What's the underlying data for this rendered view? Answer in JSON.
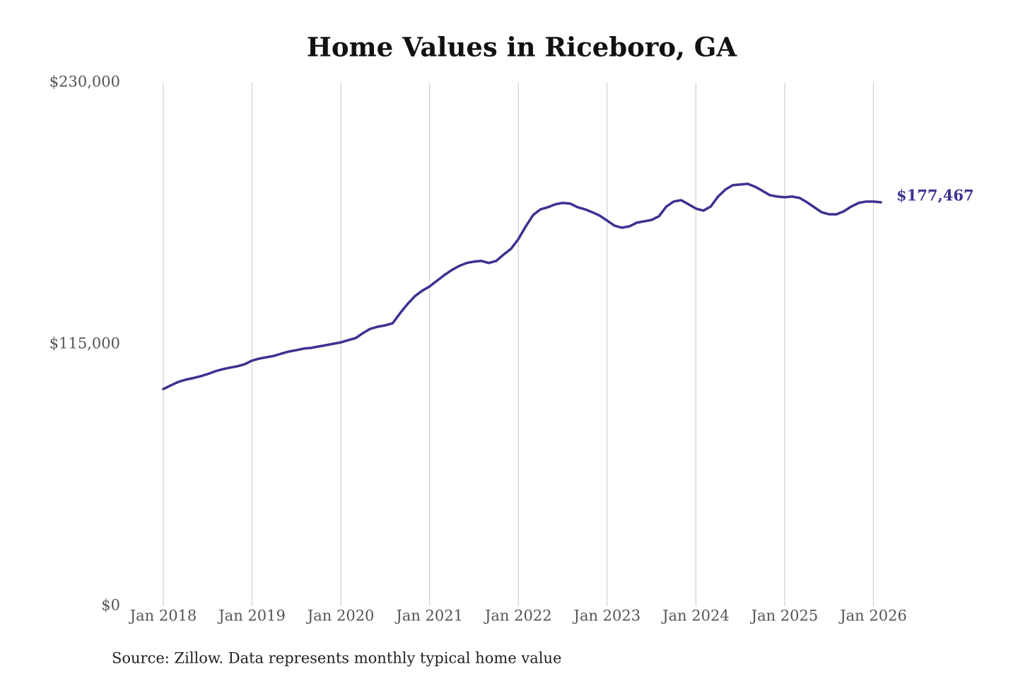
{
  "chart_data": {
    "type": "line",
    "title": "Home Values in Riceboro, GA",
    "source": "Source: Zillow. Data represents monthly typical home value",
    "x": [
      "2018-01",
      "2018-02",
      "2018-03",
      "2018-04",
      "2018-05",
      "2018-06",
      "2018-07",
      "2018-08",
      "2018-09",
      "2018-10",
      "2018-11",
      "2018-12",
      "2019-01",
      "2019-02",
      "2019-03",
      "2019-04",
      "2019-05",
      "2019-06",
      "2019-07",
      "2019-08",
      "2019-09",
      "2019-10",
      "2019-11",
      "2019-12",
      "2020-01",
      "2020-02",
      "2020-03",
      "2020-04",
      "2020-05",
      "2020-06",
      "2020-07",
      "2020-08",
      "2020-09",
      "2020-10",
      "2020-11",
      "2020-12",
      "2021-01",
      "2021-02",
      "2021-03",
      "2021-04",
      "2021-05",
      "2021-06",
      "2021-07",
      "2021-08",
      "2021-09",
      "2021-10",
      "2021-11",
      "2021-12",
      "2022-01",
      "2022-02",
      "2022-03",
      "2022-04",
      "2022-05",
      "2022-06",
      "2022-07",
      "2022-08",
      "2022-09",
      "2022-10",
      "2022-11",
      "2022-12",
      "2023-01",
      "2023-02",
      "2023-03",
      "2023-04",
      "2023-05",
      "2023-06",
      "2023-07",
      "2023-08",
      "2023-09",
      "2023-10",
      "2023-11",
      "2023-12",
      "2024-01",
      "2024-02",
      "2024-03",
      "2024-04",
      "2024-05",
      "2024-06",
      "2024-07",
      "2024-08",
      "2024-09",
      "2024-10",
      "2024-11",
      "2024-12",
      "2025-01",
      "2025-02",
      "2025-03",
      "2025-04",
      "2025-05",
      "2025-06",
      "2025-07",
      "2025-08",
      "2025-09",
      "2025-10",
      "2025-11",
      "2025-12",
      "2026-01",
      "2026-02"
    ],
    "series": [
      {
        "name": "Riceboro, GA",
        "color": "#3b3291",
        "values": [
          95400,
          97000,
          98500,
          99500,
          100200,
          101000,
          102000,
          103200,
          104100,
          104800,
          105400,
          106300,
          107900,
          108800,
          109400,
          110000,
          111000,
          111900,
          112500,
          113200,
          113500,
          114100,
          114700,
          115300,
          115900,
          116900,
          117800,
          120000,
          121900,
          122800,
          123400,
          124300,
          128700,
          132700,
          136200,
          138600,
          140500,
          143000,
          145500,
          147700,
          149500,
          150800,
          151400,
          151700,
          150800,
          151700,
          154500,
          157000,
          161300,
          166900,
          171900,
          174400,
          175300,
          176600,
          177200,
          176900,
          175300,
          174400,
          173100,
          171600,
          169400,
          167200,
          166300,
          166900,
          168500,
          169100,
          169700,
          171300,
          175600,
          177800,
          178400,
          176600,
          174700,
          173800,
          175600,
          180000,
          183100,
          185000,
          185300,
          185600,
          184300,
          182500,
          180600,
          180000,
          179700,
          180000,
          179400,
          177500,
          175300,
          173100,
          172200,
          172200,
          173500,
          175600,
          177200,
          177800,
          177800,
          177467
        ],
        "value_labels": [
          null,
          null,
          null,
          null,
          null,
          null,
          null,
          null,
          null,
          null,
          null,
          null,
          null,
          null,
          null,
          null,
          null,
          null,
          null,
          null,
          null,
          null,
          null,
          null,
          null,
          null,
          null,
          null,
          null,
          null,
          null,
          null,
          null,
          null,
          null,
          null,
          null,
          null,
          null,
          null,
          null,
          null,
          null,
          null,
          null,
          null,
          null,
          null,
          null,
          null,
          null,
          null,
          null,
          null,
          null,
          null,
          null,
          null,
          null,
          null,
          null,
          null,
          null,
          null,
          null,
          null,
          null,
          null,
          null,
          null,
          null,
          null,
          null,
          null,
          null,
          null,
          null,
          null,
          null,
          null,
          null,
          null,
          null,
          null,
          null,
          null,
          null,
          null,
          null,
          null,
          null,
          null,
          null,
          null,
          null,
          null,
          null,
          "$177,467"
        ]
      }
    ],
    "xlim": [
      "2018-01",
      "2026-02"
    ],
    "xticks": [
      {
        "value": "2018-01",
        "label": "Jan 2018"
      },
      {
        "value": "2019-01",
        "label": "Jan 2019"
      },
      {
        "value": "2020-01",
        "label": "Jan 2020"
      },
      {
        "value": "2021-01",
        "label": "Jan 2021"
      },
      {
        "value": "2022-01",
        "label": "Jan 2022"
      },
      {
        "value": "2023-01",
        "label": "Jan 2023"
      },
      {
        "value": "2024-01",
        "label": "Jan 2024"
      },
      {
        "value": "2025-01",
        "label": "Jan 2025"
      },
      {
        "value": "2026-01",
        "label": "Jan 2026"
      }
    ],
    "ylim": [
      0,
      230000
    ],
    "yticks": [
      {
        "value": 0,
        "label": "$0"
      },
      {
        "value": 115000,
        "label": "$115,000"
      },
      {
        "value": 230000,
        "label": "$230,000"
      }
    ],
    "grid": "x"
  }
}
